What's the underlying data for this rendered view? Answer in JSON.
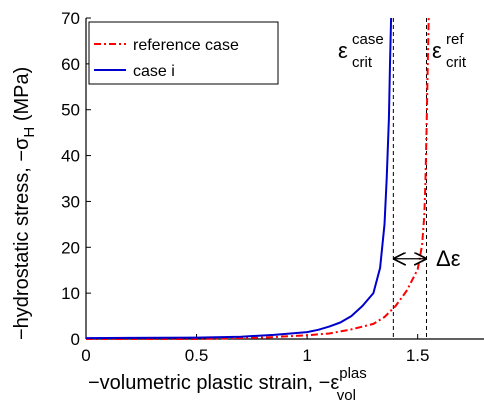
{
  "chart_data": {
    "type": "line",
    "xlabel": "−volumetric plastic strain, −ε",
    "xlabel_sup": "plas",
    "xlabel_sub": "vol",
    "ylabel": "−hydrostatic stress, −σ",
    "ylabel_sub": "H",
    "ylabel_unit": " (MPa)",
    "xlim": [
      0,
      1.8
    ],
    "ylim": [
      0,
      70
    ],
    "xticks": [
      0,
      0.5,
      1,
      1.5
    ],
    "xtick_labels": [
      "0",
      "0.5",
      "1",
      "1.5"
    ],
    "yticks": [
      0,
      10,
      20,
      30,
      40,
      50,
      60,
      70
    ],
    "ytick_labels": [
      "0",
      "10",
      "20",
      "30",
      "40",
      "50",
      "60",
      "70"
    ],
    "grid": false,
    "legend_position": "top-left",
    "series": [
      {
        "name": "reference case",
        "color": "#ff0000",
        "style": "dash-dot",
        "points": [
          [
            0,
            0
          ],
          [
            0.5,
            0
          ],
          [
            0.8,
            0.3
          ],
          [
            1.0,
            0.8
          ],
          [
            1.1,
            1.2
          ],
          [
            1.2,
            2.1
          ],
          [
            1.3,
            3.3
          ],
          [
            1.35,
            4.8
          ],
          [
            1.4,
            7.2
          ],
          [
            1.45,
            10.5
          ],
          [
            1.5,
            15.2
          ],
          [
            1.52,
            20.5
          ],
          [
            1.53,
            27.0
          ],
          [
            1.535,
            34.0
          ],
          [
            1.54,
            45.0
          ],
          [
            1.545,
            58.0
          ],
          [
            1.55,
            70.0
          ]
        ]
      },
      {
        "name": "case i",
        "color": "#0000cc",
        "style": "solid",
        "points": [
          [
            0,
            0.2
          ],
          [
            0.5,
            0.3
          ],
          [
            0.7,
            0.5
          ],
          [
            0.85,
            0.9
          ],
          [
            1.0,
            1.5
          ],
          [
            1.05,
            2.0
          ],
          [
            1.1,
            2.7
          ],
          [
            1.15,
            3.6
          ],
          [
            1.2,
            5.0
          ],
          [
            1.25,
            7.2
          ],
          [
            1.3,
            10.0
          ],
          [
            1.33,
            15.5
          ],
          [
            1.35,
            25.0
          ],
          [
            1.36,
            35.0
          ],
          [
            1.37,
            48.0
          ],
          [
            1.375,
            60.0
          ],
          [
            1.38,
            70.0
          ]
        ]
      }
    ],
    "vlines": [
      {
        "x": 1.39,
        "color": "#000000",
        "style": "dashed"
      },
      {
        "x": 1.54,
        "color": "#000000",
        "style": "dashed"
      }
    ],
    "arrow": {
      "x1": 1.39,
      "x2": 1.54,
      "y": 17.5
    },
    "annotations": {
      "delta": "Δε",
      "crit_case_base": "ε",
      "crit_case_sup": "case",
      "crit_case_sub": "crit",
      "crit_ref_base": "ε",
      "crit_ref_sup": "ref",
      "crit_ref_sub": "crit"
    }
  }
}
